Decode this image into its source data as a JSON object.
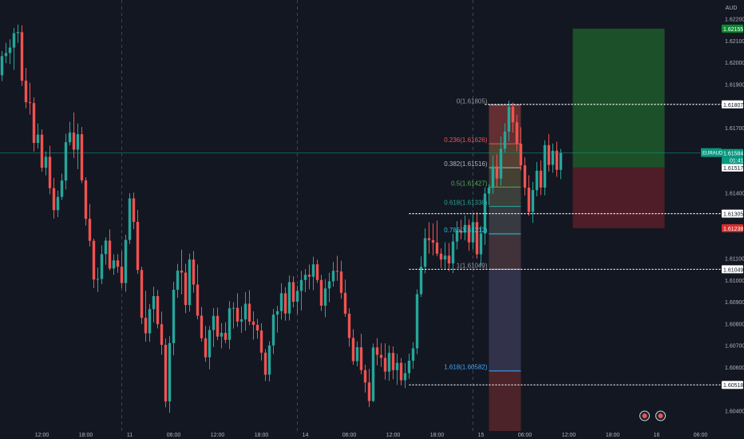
{
  "symbol_tag": "EURAUD",
  "currency": "AUD",
  "countdown": "01:41",
  "colors": {
    "background": "#131722",
    "up": "#26a69a",
    "down": "#ef5350",
    "grid_separator": "#3c4656",
    "text": "#b2b5be",
    "target_zone": "#1f5a2a",
    "stop_zone": "#5a1f28",
    "fib_fill": "#2a5a88",
    "fib_red": "#7a2e2e",
    "price_tag": "#089981",
    "green_tag": "#0c8a2f",
    "red_tag": "#d32f2f",
    "level_line": "#ffffff"
  },
  "chart_data": {
    "type": "candlestick",
    "price_axis": {
      "ticks": [
        {
          "label": "1.62200",
          "value": 1.622
        },
        {
          "label": "1.62100",
          "value": 1.621
        },
        {
          "label": "1.62000",
          "value": 1.62
        },
        {
          "label": "1.61900",
          "value": 1.619
        },
        {
          "label": "1.61700",
          "value": 1.617
        },
        {
          "label": "1.61400",
          "value": 1.614
        },
        {
          "label": "1.61100",
          "value": 1.611
        },
        {
          "label": "1.61000",
          "value": 1.61
        },
        {
          "label": "1.60900",
          "value": 1.609
        },
        {
          "label": "1.60800",
          "value": 1.608
        },
        {
          "label": "1.60700",
          "value": 1.607
        },
        {
          "label": "1.60600",
          "value": 1.606
        },
        {
          "label": "1.60400",
          "value": 1.604
        }
      ],
      "range": [
        1.6035,
        1.6225
      ]
    },
    "price_tags": [
      {
        "label": "1.62155",
        "value": 1.62155,
        "style": "green"
      },
      {
        "label": "1.61807",
        "value": 1.61807,
        "style": "plain"
      },
      {
        "label": "1.61584",
        "value": 1.61584,
        "style": "current"
      },
      {
        "label": "1.61517",
        "value": 1.61517,
        "style": "plain"
      },
      {
        "label": "1.61305",
        "value": 1.61305,
        "style": "plain"
      },
      {
        "label": "1.61238",
        "value": 1.61238,
        "style": "red"
      },
      {
        "label": "1.61049",
        "value": 1.61049,
        "style": "plain"
      },
      {
        "label": "1.60518",
        "value": 1.60518,
        "style": "plain"
      }
    ],
    "horizontal_levels": [
      {
        "value": 1.61807,
        "from_bar": 121
      },
      {
        "value": 1.61305,
        "from_bar": 102
      },
      {
        "value": 1.61049,
        "from_bar": 102
      },
      {
        "value": 1.60518,
        "from_bar": 102
      }
    ],
    "time_axis": {
      "ticks": [
        {
          "label": "12:00",
          "bar": 10
        },
        {
          "label": "18:00",
          "bar": 21
        },
        {
          "label": "11",
          "bar": 32
        },
        {
          "label": "06:00",
          "bar": 43
        },
        {
          "label": "12:00",
          "bar": 54
        },
        {
          "label": "18:00",
          "bar": 65
        },
        {
          "label": "14",
          "bar": 76
        },
        {
          "label": "06:00",
          "bar": 87
        },
        {
          "label": "12:00",
          "bar": 98
        },
        {
          "label": "18:00",
          "bar": 109
        },
        {
          "label": "15",
          "bar": 120
        },
        {
          "label": "06:00",
          "bar": 131
        },
        {
          "label": "12:00",
          "bar": 142
        },
        {
          "label": "18:00",
          "bar": 153
        },
        {
          "label": "16",
          "bar": 164
        },
        {
          "label": "06:00",
          "bar": 175
        }
      ],
      "session_separators": [
        30,
        74,
        118
      ]
    },
    "fibonacci": {
      "from_bar": 122,
      "to_bar": 130,
      "levels": [
        {
          "label": "0(1.61805)",
          "value": 1.61805,
          "color": "#9598a1"
        },
        {
          "label": "0.236(1.61626)",
          "value": 1.61626,
          "color": "#ef5350"
        },
        {
          "label": "0.382(1.61516)",
          "value": 1.61516,
          "color": "#b2b5be"
        },
        {
          "label": "0.5(1.61427)",
          "value": 1.61427,
          "color": "#4caf50"
        },
        {
          "label": "0.618(1.61338)",
          "value": 1.61338,
          "color": "#26a69a"
        },
        {
          "label": "0.786(1.61212)",
          "value": 1.61212,
          "color": "#26c6da"
        },
        {
          "label": "1(1.61049)",
          "value": 1.61049,
          "color": "#9598a1"
        },
        {
          "label": "1.618(1.60582)",
          "value": 1.60582,
          "color": "#42a5f5"
        }
      ]
    },
    "position": {
      "from_bar": 143,
      "to_bar": 166,
      "target": 1.62155,
      "entry": 1.61517,
      "stop": 1.61238
    },
    "event_icons": [
      {
        "bar": 161
      },
      {
        "bar": 165
      }
    ],
    "candles": [
      [
        1.61941,
        1.62052,
        1.61914,
        1.62029
      ],
      [
        1.62029,
        1.6209,
        1.61996,
        1.62043
      ],
      [
        1.62043,
        1.62106,
        1.61993,
        1.62068
      ],
      [
        1.62068,
        1.62158,
        1.61966,
        1.62134
      ],
      [
        1.62134,
        1.62174,
        1.6209,
        1.62139
      ],
      [
        1.62139,
        1.6217,
        1.61892,
        1.61916
      ],
      [
        1.61916,
        1.61975,
        1.61789,
        1.61817
      ],
      [
        1.61817,
        1.61907,
        1.6176,
        1.61813
      ],
      [
        1.61813,
        1.61839,
        1.6159,
        1.6163
      ],
      [
        1.6163,
        1.61719,
        1.61604,
        1.61668
      ],
      [
        1.61668,
        1.61692,
        1.61498,
        1.61516
      ],
      [
        1.61516,
        1.61591,
        1.61481,
        1.61566
      ],
      [
        1.61566,
        1.61617,
        1.61394,
        1.61422
      ],
      [
        1.61422,
        1.61469,
        1.61282,
        1.61321
      ],
      [
        1.61321,
        1.61411,
        1.61289,
        1.61382
      ],
      [
        1.61382,
        1.61489,
        1.61368,
        1.61457
      ],
      [
        1.61457,
        1.61672,
        1.61416,
        1.61633
      ],
      [
        1.61633,
        1.61727,
        1.61618,
        1.61677
      ],
      [
        1.61677,
        1.6177,
        1.6156,
        1.61599
      ],
      [
        1.61599,
        1.61719,
        1.61509,
        1.6167
      ],
      [
        1.6167,
        1.61703,
        1.61445,
        1.61458
      ],
      [
        1.61458,
        1.61472,
        1.6125,
        1.61281
      ],
      [
        1.61281,
        1.6135,
        1.61154,
        1.6118
      ],
      [
        1.6118,
        1.6119,
        1.60963,
        1.61002
      ],
      [
        1.61002,
        1.61057,
        1.60945,
        1.61005
      ],
      [
        1.61005,
        1.61159,
        1.60981,
        1.61119
      ],
      [
        1.61119,
        1.61196,
        1.6107,
        1.61181
      ],
      [
        1.61181,
        1.61232,
        1.61044,
        1.61053
      ],
      [
        1.61053,
        1.61118,
        1.61023,
        1.6109
      ],
      [
        1.6109,
        1.61119,
        1.61033,
        1.61061
      ],
      [
        1.61061,
        1.61132,
        1.60963,
        1.60986
      ],
      [
        1.60986,
        1.61208,
        1.60946,
        1.61184
      ],
      [
        1.61184,
        1.61399,
        1.61165,
        1.61375
      ],
      [
        1.61375,
        1.61402,
        1.61234,
        1.61267
      ],
      [
        1.61267,
        1.61322,
        1.61028,
        1.61046
      ],
      [
        1.61046,
        1.61061,
        1.60797,
        1.60826
      ],
      [
        1.60826,
        1.6095,
        1.60717,
        1.60755
      ],
      [
        1.60755,
        1.6089,
        1.60716,
        1.60866
      ],
      [
        1.60866,
        1.60969,
        1.60805,
        1.60926
      ],
      [
        1.60926,
        1.60954,
        1.60778,
        1.60797
      ],
      [
        1.60797,
        1.60855,
        1.60657,
        1.60702
      ],
      [
        1.60702,
        1.60731,
        1.60415,
        1.60442
      ],
      [
        1.60442,
        1.60742,
        1.6039,
        1.6071
      ],
      [
        1.6071,
        1.60992,
        1.60654,
        1.60955
      ],
      [
        1.60955,
        1.61074,
        1.60918,
        1.61043
      ],
      [
        1.61043,
        1.61139,
        1.60934,
        1.61034
      ],
      [
        1.61034,
        1.61075,
        1.60848,
        1.60885
      ],
      [
        1.60885,
        1.61121,
        1.60855,
        1.61094
      ],
      [
        1.61094,
        1.61133,
        1.60942,
        1.60979
      ],
      [
        1.60979,
        1.61071,
        1.60819,
        1.60836
      ],
      [
        1.60836,
        1.60876,
        1.60717,
        1.60732
      ],
      [
        1.60732,
        1.60789,
        1.60624,
        1.60645
      ],
      [
        1.60645,
        1.60789,
        1.6059,
        1.6077
      ],
      [
        1.6077,
        1.60871,
        1.60692,
        1.60835
      ],
      [
        1.60835,
        1.60873,
        1.60724,
        1.6074
      ],
      [
        1.6074,
        1.60802,
        1.60686,
        1.60757
      ],
      [
        1.60757,
        1.60806,
        1.60709,
        1.60725
      ],
      [
        1.60725,
        1.60903,
        1.60683,
        1.6087
      ],
      [
        1.6087,
        1.60898,
        1.60777,
        1.60872
      ],
      [
        1.60872,
        1.60939,
        1.60784,
        1.60809
      ],
      [
        1.60809,
        1.60879,
        1.60757,
        1.60819
      ],
      [
        1.60819,
        1.60944,
        1.60767,
        1.60891
      ],
      [
        1.60891,
        1.60953,
        1.60793,
        1.60809
      ],
      [
        1.60809,
        1.60856,
        1.60726,
        1.60794
      ],
      [
        1.60794,
        1.60821,
        1.6073,
        1.60768
      ],
      [
        1.60768,
        1.60801,
        1.6063,
        1.60666
      ],
      [
        1.60666,
        1.60683,
        1.60536,
        1.60565
      ],
      [
        1.60565,
        1.60719,
        1.60534,
        1.60699
      ],
      [
        1.60699,
        1.60867,
        1.6066,
        1.60841
      ],
      [
        1.60841,
        1.60881,
        1.60758,
        1.60857
      ],
      [
        1.60857,
        1.60985,
        1.60818,
        1.60939
      ],
      [
        1.60939,
        1.60967,
        1.60813,
        1.60846
      ],
      [
        1.60846,
        1.61021,
        1.60814,
        1.6099
      ],
      [
        1.6099,
        1.61017,
        1.60874,
        1.609
      ],
      [
        1.609,
        1.60974,
        1.60843,
        1.6095
      ],
      [
        1.6095,
        1.61042,
        1.6086,
        1.61
      ],
      [
        1.61,
        1.6105,
        1.60944,
        1.61024
      ],
      [
        1.61024,
        1.61071,
        1.60957,
        1.61015
      ],
      [
        1.61015,
        1.61107,
        1.60953,
        1.61072
      ],
      [
        1.61072,
        1.61093,
        1.60986,
        1.61
      ],
      [
        1.61,
        1.61024,
        1.60858,
        1.60882
      ],
      [
        1.60882,
        1.61004,
        1.60829,
        1.60961
      ],
      [
        1.60961,
        1.61033,
        1.60898,
        1.60994
      ],
      [
        1.60994,
        1.61083,
        1.60969,
        1.61042
      ],
      [
        1.61042,
        1.61111,
        1.60996,
        1.61039
      ],
      [
        1.61039,
        1.61088,
        1.60914,
        1.60941
      ],
      [
        1.60941,
        1.61002,
        1.60831,
        1.60845
      ],
      [
        1.60845,
        1.6087,
        1.60694,
        1.60734
      ],
      [
        1.60734,
        1.60774,
        1.6061,
        1.60627
      ],
      [
        1.60627,
        1.60718,
        1.60603,
        1.60691
      ],
      [
        1.60691,
        1.60753,
        1.60567,
        1.60586
      ],
      [
        1.60586,
        1.60611,
        1.60483,
        1.60529
      ],
      [
        1.60529,
        1.60591,
        1.60416,
        1.60444
      ],
      [
        1.60444,
        1.60708,
        1.60439,
        1.6069
      ],
      [
        1.6069,
        1.60733,
        1.60608,
        1.60656
      ],
      [
        1.60656,
        1.6071,
        1.60601,
        1.60642
      ],
      [
        1.60642,
        1.60709,
        1.60542,
        1.60579
      ],
      [
        1.60579,
        1.607,
        1.60536,
        1.60665
      ],
      [
        1.60665,
        1.60695,
        1.60544,
        1.60586
      ],
      [
        1.60586,
        1.60661,
        1.60518,
        1.60619
      ],
      [
        1.60619,
        1.60641,
        1.60516,
        1.60539
      ],
      [
        1.60539,
        1.60618,
        1.60503,
        1.60572
      ],
      [
        1.60572,
        1.60662,
        1.60546,
        1.60629
      ],
      [
        1.60629,
        1.60714,
        1.60592,
        1.60686
      ],
      [
        1.60686,
        1.60957,
        1.60659,
        1.60935
      ],
      [
        1.60935,
        1.61109,
        1.60922,
        1.61061
      ],
      [
        1.61061,
        1.61237,
        1.61031,
        1.61192
      ],
      [
        1.61192,
        1.61265,
        1.61121,
        1.61183
      ],
      [
        1.61183,
        1.6126,
        1.61113,
        1.61172
      ],
      [
        1.61172,
        1.61273,
        1.61109,
        1.61121
      ],
      [
        1.61121,
        1.61145,
        1.61055,
        1.61094
      ],
      [
        1.61094,
        1.61173,
        1.61052,
        1.61112
      ],
      [
        1.61112,
        1.6117,
        1.6104,
        1.61076
      ],
      [
        1.61076,
        1.61212,
        1.61032,
        1.61177
      ],
      [
        1.61177,
        1.6127,
        1.6114,
        1.61228
      ],
      [
        1.61228,
        1.61277,
        1.61187,
        1.61218
      ],
      [
        1.61218,
        1.61297,
        1.61182,
        1.61253
      ],
      [
        1.61253,
        1.61279,
        1.61134,
        1.61173
      ],
      [
        1.61173,
        1.61304,
        1.61142,
        1.61266
      ],
      [
        1.61266,
        1.61311,
        1.61098,
        1.61118
      ],
      [
        1.61118,
        1.61249,
        1.61066,
        1.61214
      ],
      [
        1.61214,
        1.61425,
        1.61161,
        1.61397
      ],
      [
        1.61397,
        1.6144,
        1.61345,
        1.61424
      ],
      [
        1.61424,
        1.61571,
        1.61396,
        1.61522
      ],
      [
        1.61522,
        1.61577,
        1.61426,
        1.61466
      ],
      [
        1.61466,
        1.61659,
        1.61434,
        1.61603
      ],
      [
        1.61603,
        1.6172,
        1.61586,
        1.61682
      ],
      [
        1.61682,
        1.61824,
        1.61636,
        1.61796
      ],
      [
        1.61796,
        1.61816,
        1.61678,
        1.61725
      ],
      [
        1.61725,
        1.6176,
        1.61592,
        1.61626
      ],
      [
        1.61626,
        1.61702,
        1.61504,
        1.61527
      ],
      [
        1.61527,
        1.61564,
        1.61388,
        1.61424
      ],
      [
        1.61424,
        1.61481,
        1.61295,
        1.61313
      ],
      [
        1.61313,
        1.61451,
        1.61263,
        1.61413
      ],
      [
        1.61413,
        1.61542,
        1.61385,
        1.61502
      ],
      [
        1.61502,
        1.6155,
        1.6139,
        1.61425
      ],
      [
        1.61425,
        1.61642,
        1.61389,
        1.6162
      ],
      [
        1.6162,
        1.61671,
        1.61498,
        1.61529
      ],
      [
        1.61529,
        1.61627,
        1.61493,
        1.61594
      ],
      [
        1.61594,
        1.61635,
        1.61474,
        1.61506
      ],
      [
        1.61506,
        1.61602,
        1.61463,
        1.61584
      ]
    ]
  }
}
